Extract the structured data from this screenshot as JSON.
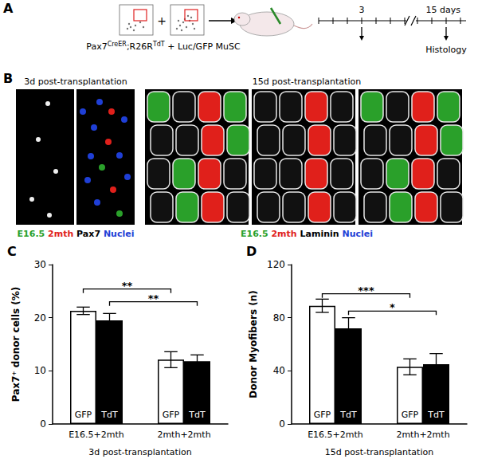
{
  "panels": {
    "A": {
      "letter": "A",
      "construct": [
        {
          "text": "Pax7",
          "sup": false
        },
        {
          "text": "CreER",
          "sup": true
        },
        {
          "text": ";R26R",
          "sup": false
        },
        {
          "text": "TdT",
          "sup": true
        },
        {
          "text": " + Luc/GFP MuSC",
          "sup": false
        }
      ],
      "timeline": [
        "3",
        "15 days"
      ],
      "endpoint": "Histology"
    },
    "B": {
      "letter": "B",
      "left": {
        "title": "3d post-transplantation",
        "channels": [
          {
            "text": "E16.5",
            "color": "#2aa02a"
          },
          {
            "text": "2mth",
            "color": "#e0201b"
          },
          {
            "text": "Pax7",
            "color": "#000000"
          },
          {
            "text": "Nuclei",
            "color": "#1f3fd6"
          }
        ]
      },
      "right": {
        "title": "15d post-transplantation",
        "channels": [
          {
            "text": "E16.5",
            "color": "#2aa02a"
          },
          {
            "text": "2mth",
            "color": "#e0201b"
          },
          {
            "text": "Laminin",
            "color": "#000000"
          },
          {
            "text": "Nuclei",
            "color": "#1f3fd6"
          }
        ]
      }
    }
  },
  "chart_data": [
    {
      "type": "bar",
      "panel": "C",
      "categories": [
        "E16.5+2mth",
        "2mth+2mth"
      ],
      "xlabel": "3d post-transplantation",
      "ylabel": "Pax7⁺ donor cells (%)",
      "ylim": [
        0,
        30
      ],
      "yticks": [
        0,
        10,
        20,
        30
      ],
      "grid": false,
      "series": [
        {
          "name": "GFP",
          "color": "#ffffff",
          "values": [
            21.3,
            12.1
          ],
          "errors": [
            0.7,
            1.5
          ],
          "significance": {
            "from": "E16.5+2mth",
            "to": "2mth+2mth",
            "y": 25.4,
            "label": "**"
          }
        },
        {
          "name": "TdT",
          "color": "#000000",
          "values": [
            19.5,
            11.8
          ],
          "errors": [
            1.3,
            1.2
          ],
          "significance": {
            "from": "E16.5+2mth",
            "to": "2mth+2mth",
            "y": 23.0,
            "label": "**"
          }
        }
      ]
    },
    {
      "type": "bar",
      "panel": "D",
      "categories": [
        "E16.5+2mth",
        "2mth+2mth"
      ],
      "xlabel": "15d post-transplantation",
      "ylabel": "Donor Myofibers (n)",
      "ylim": [
        0,
        120
      ],
      "yticks": [
        0,
        40,
        80,
        120
      ],
      "grid": false,
      "series": [
        {
          "name": "GFP",
          "color": "#ffffff",
          "values": [
            89,
            43
          ],
          "errors": [
            5,
            6
          ],
          "significance": {
            "from": "E16.5+2mth",
            "to": "2mth+2mth",
            "y": 98,
            "label": "***"
          }
        },
        {
          "name": "TdT",
          "color": "#000000",
          "values": [
            72,
            45
          ],
          "errors": [
            8,
            8
          ],
          "significance": {
            "from": "E16.5+2mth",
            "to": "2mth+2mth",
            "y": 85,
            "label": "*"
          }
        }
      ]
    }
  ]
}
